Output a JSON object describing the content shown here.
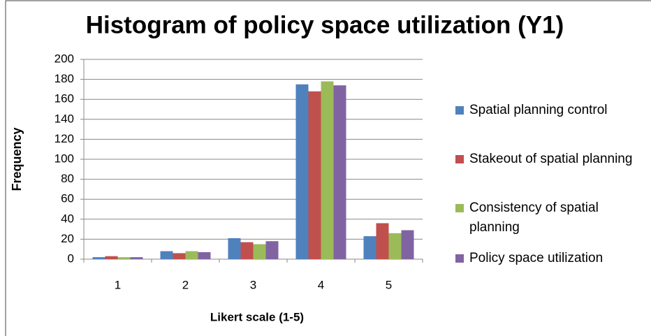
{
  "chart_data": {
    "type": "bar",
    "title": "Histogram of policy space utilization (Y1)",
    "x_label": "Likert scale (1-5)",
    "y_label": "Frequency",
    "categories": [
      "1",
      "2",
      "3",
      "4",
      "5"
    ],
    "series": [
      {
        "name": "Spatial planning control",
        "color": "#4f81bd",
        "values": [
          2,
          8,
          21,
          175,
          23
        ]
      },
      {
        "name": "Stakeout of spatial planning",
        "color": "#c0504d",
        "values": [
          3,
          6,
          17,
          168,
          36
        ]
      },
      {
        "name": "Consistency of spatial planning",
        "color": "#9bbb59",
        "values": [
          2,
          8,
          15,
          178,
          26
        ]
      },
      {
        "name": "Policy space utilization",
        "color": "#8064a2",
        "values": [
          2,
          7,
          18,
          174,
          29
        ]
      }
    ],
    "ylim": [
      0,
      200
    ],
    "yticks": [
      0,
      20,
      40,
      60,
      80,
      100,
      120,
      140,
      160,
      180,
      200
    ],
    "grid": true,
    "legend": "right"
  }
}
